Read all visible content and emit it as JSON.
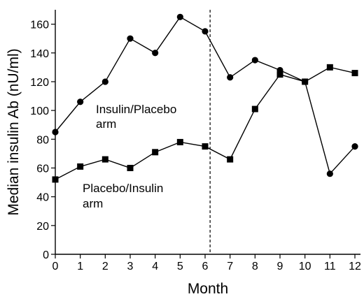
{
  "chart_data": {
    "type": "line",
    "xlabel": "Month",
    "ylabel": "Median insulin Ab (nU/ml)",
    "xlim": [
      0,
      12
    ],
    "ylim": [
      0,
      170
    ],
    "x_ticks": [
      0,
      1,
      2,
      3,
      4,
      5,
      6,
      7,
      8,
      9,
      10,
      11,
      12
    ],
    "y_ticks": [
      0,
      20,
      40,
      60,
      80,
      100,
      120,
      140,
      160
    ],
    "grid": false,
    "legend": "none",
    "vertical_reference_line": {
      "x": 6.2,
      "style": "dashed"
    },
    "series": [
      {
        "name": "Insulin/Placebo arm",
        "marker": "circle",
        "x": [
          0,
          1,
          2,
          3,
          4,
          5,
          6,
          7,
          8,
          9,
          10,
          11,
          12
        ],
        "values": [
          85,
          106,
          120,
          150,
          140,
          165,
          155,
          123,
          135,
          128,
          120,
          56,
          75
        ]
      },
      {
        "name": "Placebo/Insulin arm",
        "marker": "square",
        "x": [
          0,
          1,
          2,
          3,
          4,
          5,
          6,
          7,
          8,
          9,
          10,
          11,
          12
        ],
        "values": [
          52,
          61,
          66,
          60,
          71,
          78,
          75,
          66,
          101,
          125,
          120,
          130,
          126
        ]
      }
    ],
    "annotations": [
      {
        "series": 0,
        "lines": [
          "Insulin/Placebo",
          "arm"
        ]
      },
      {
        "series": 1,
        "lines": [
          "Placebo/Insulin",
          "arm"
        ]
      }
    ]
  }
}
